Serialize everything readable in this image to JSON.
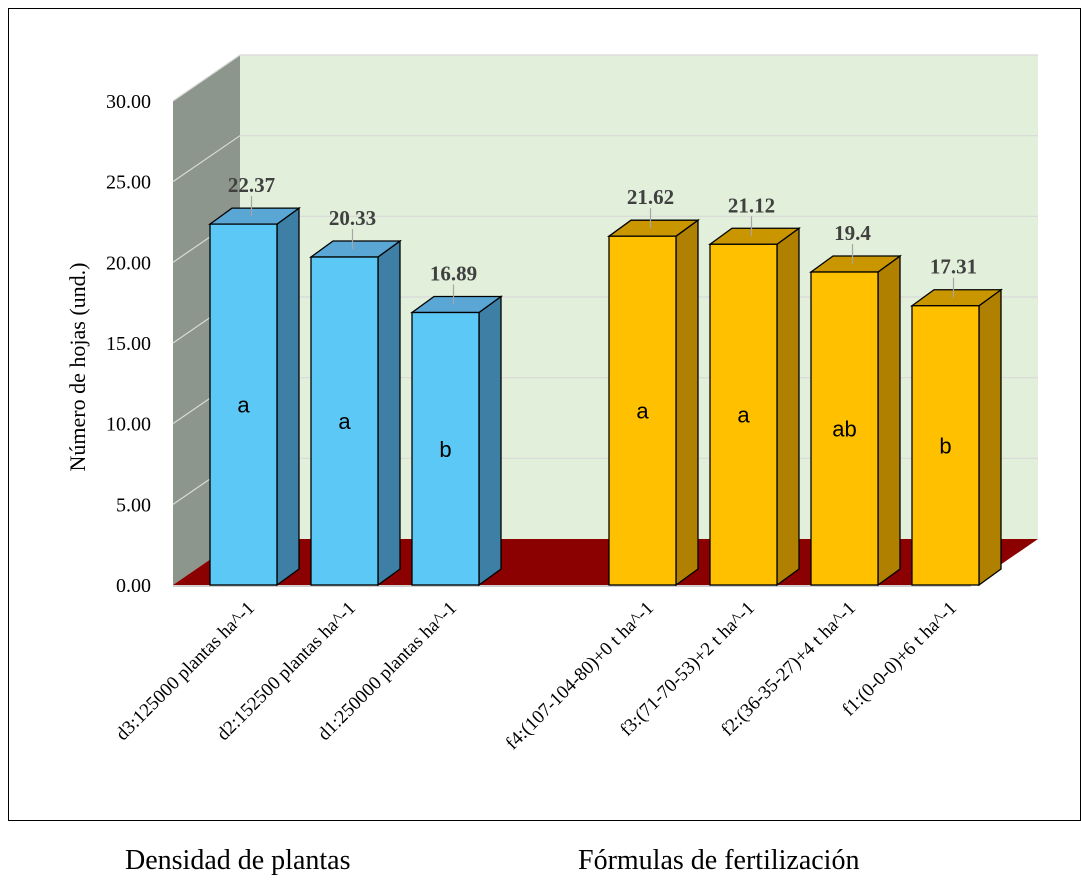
{
  "chart_data": {
    "type": "bar",
    "ylabel": "Número de hojas (und.)",
    "ylim": [
      0,
      30
    ],
    "yticks": [
      "0.00",
      "5.00",
      "10.00",
      "15.00",
      "20.00",
      "25.00",
      "30.00"
    ],
    "grid": true,
    "groups": [
      {
        "name": "Densidad de plantas",
        "color": "#5BC8F5",
        "bars": [
          {
            "category": "d3:125000 plantas ha^-1",
            "value": 22.37,
            "label": "22.37",
            "letter": "a"
          },
          {
            "category": "d2:152500 plantas ha^-1",
            "value": 20.33,
            "label": "20.33",
            "letter": "a"
          },
          {
            "category": "d1:250000 plantas ha^-1",
            "value": 16.89,
            "label": "16.89",
            "letter": "b"
          }
        ]
      },
      {
        "name": "Fórmulas de fertilización",
        "color": "#FFC000",
        "bars": [
          {
            "category": "f4:(107-104-80)+0 t ha^-1",
            "value": 21.62,
            "label": "21.62",
            "letter": "a"
          },
          {
            "category": "f3:(71-70-53)+2 t ha^-1",
            "value": 21.12,
            "label": "21.12",
            "letter": "a"
          },
          {
            "category": "f2:(36-35-27)+4 t ha^-1",
            "value": 19.4,
            "label": "19.4",
            "letter": "ab"
          },
          {
            "category": "f1:(0-0-0)+6 t ha^-1",
            "value": 17.31,
            "label": "17.31",
            "letter": "b"
          }
        ]
      }
    ],
    "colors": {
      "back_wall": "#E2EFDA",
      "side_wall": "#8C968C",
      "floor": "#8B0000",
      "grid": "#D9D9D9",
      "blue_side": "#3E7FA6",
      "blue_top": "#5AA6D4",
      "gold_side": "#B08000",
      "gold_top": "#C99600"
    }
  }
}
